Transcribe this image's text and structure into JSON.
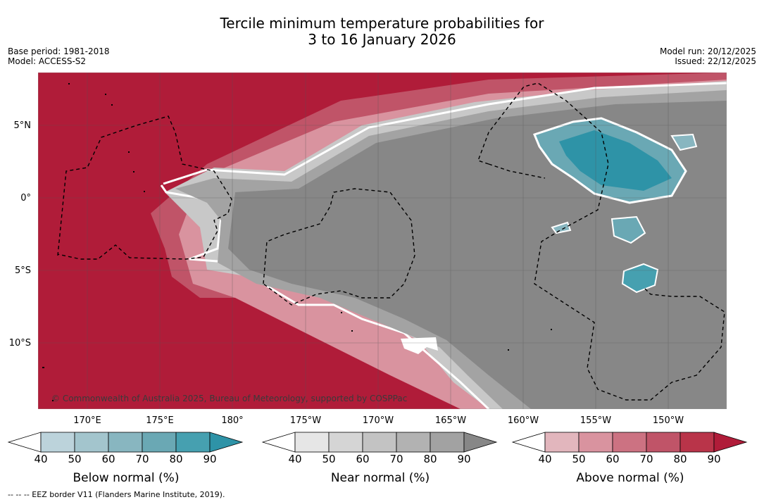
{
  "title": {
    "line1": "Tercile minimum temperature probabilities for",
    "line2": "3 to 16 January 2026"
  },
  "meta_left": {
    "base_period": "Base period: 1981-2018",
    "model": "Model: ACCESS-S2"
  },
  "meta_right": {
    "model_run": "Model run: 20/12/2025",
    "issued": "Issued: 22/12/2025"
  },
  "map": {
    "lat_labels": [
      "5°N",
      "0°",
      "5°S",
      "10°S"
    ],
    "lon_labels": [
      "170°E",
      "175°E",
      "180°",
      "175°W",
      "170°W",
      "165°W",
      "160°W",
      "155°W",
      "150°W"
    ],
    "copyright": "© Commonwealth of Australia 2025, Bureau of Meteorology, supported by COSPPac",
    "colors": {
      "ocean_above": "#b01c39",
      "near_normal": "#878787",
      "below_normal": "#2e93a7"
    }
  },
  "colorbars": [
    {
      "title": "Below normal (%)",
      "ticks": [
        "40",
        "50",
        "60",
        "70",
        "80",
        "90"
      ],
      "colors": [
        "#ffffff",
        "#bcd3db",
        "#a3c5cd",
        "#88b6c0",
        "#6aa8b4",
        "#46a0b0",
        "#2e93a7"
      ]
    },
    {
      "title": "Near normal (%)",
      "ticks": [
        "40",
        "50",
        "60",
        "70",
        "80",
        "90"
      ],
      "colors": [
        "#ffffff",
        "#e6e6e6",
        "#d5d5d5",
        "#c3c3c3",
        "#b2b2b2",
        "#a2a2a2",
        "#878787"
      ]
    },
    {
      "title": "Above normal (%)",
      "ticks": [
        "40",
        "50",
        "60",
        "70",
        "80",
        "90"
      ],
      "colors": [
        "#ffffff",
        "#e2b6bd",
        "#d9939f",
        "#cc7282",
        "#c05468",
        "#b93449",
        "#b01c39"
      ]
    }
  ],
  "footer": "--  --  -- EEZ border V11 (Flanders Marine Institute, 2019)."
}
